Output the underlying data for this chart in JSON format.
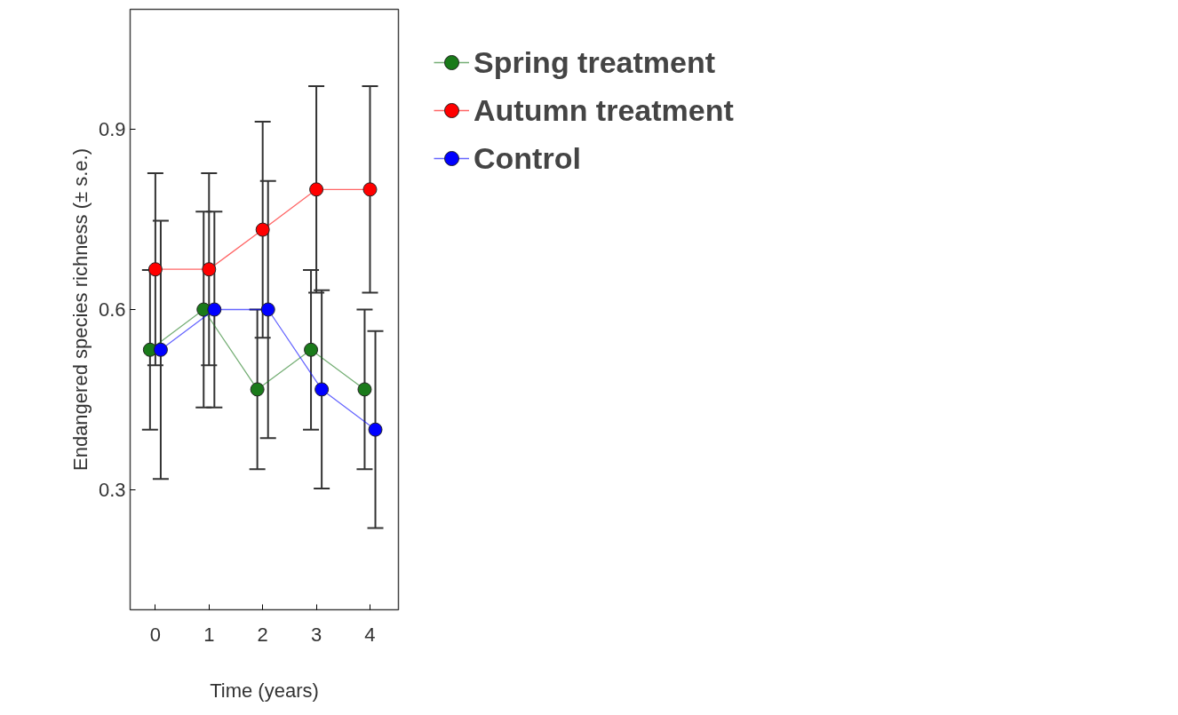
{
  "chart_data": {
    "type": "line",
    "xlabel": "Time (years)",
    "ylabel": "Endangered species richness (± s.e.)",
    "xlim": [
      -0.47,
      4.53
    ],
    "ylim": [
      0.1,
      1.1
    ],
    "xticks": [
      0,
      1,
      2,
      3,
      4
    ],
    "yticks": [
      0.3,
      0.6,
      0.9
    ],
    "grid": false,
    "legend": "top right",
    "marker": "circle",
    "line_style": "solid",
    "series": [
      {
        "name": "Spring treatment",
        "color": "#1a7a1a",
        "x": [
          -0.1,
          0.9,
          1.9,
          2.9,
          3.9
        ],
        "values": [
          0.533,
          0.6,
          0.467,
          0.533,
          0.467
        ],
        "errors": [
          0.133,
          0.163,
          0.133,
          0.133,
          0.133
        ]
      },
      {
        "name": "Autumn treatment",
        "color": "#ff0000",
        "x": [
          0,
          1,
          2,
          3,
          4
        ],
        "values": [
          0.667,
          0.667,
          0.733,
          0.8,
          0.8
        ],
        "errors": [
          0.16,
          0.16,
          0.18,
          0.172,
          0.172
        ]
      },
      {
        "name": "Control",
        "color": "#0000ff",
        "x": [
          0.1,
          1.1,
          2.1,
          3.1,
          4.1
        ],
        "values": [
          0.533,
          0.6,
          0.6,
          0.467,
          0.4
        ],
        "errors": [
          0.215,
          0.163,
          0.214,
          0.165,
          0.164
        ]
      }
    ]
  }
}
